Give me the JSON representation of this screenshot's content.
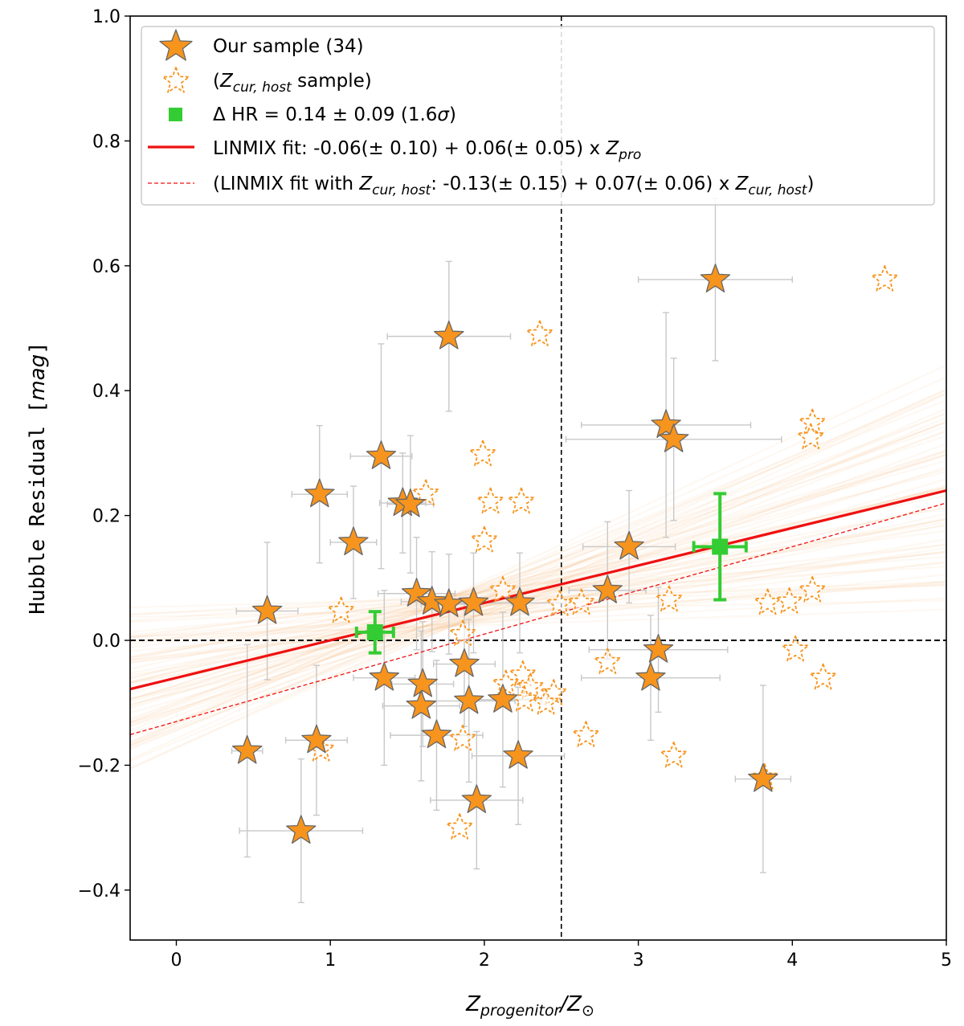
{
  "colors": {
    "star_fill": "#F7941D",
    "star_edge": "#666666",
    "hollow_star": "#F7941D",
    "green": "#33CC33",
    "fit": "#EE1111",
    "band": "#F7B06A",
    "error_bar": "#C8C8C8",
    "ref_line": "#000000"
  },
  "chart_data": {
    "type": "scatter",
    "xlabel": "Zprogenitor/Z⊙",
    "xlabel_parts": {
      "z": "Z",
      "sub": "progenitor",
      "slash": "/Z",
      "odot": "⊙"
    },
    "ylabel": "Hubble Residual [mag]",
    "ylabel_parts": {
      "main": "Hubble Residual ",
      "lb": "[",
      "unit": "mag",
      "rb": "]"
    },
    "xlim": [
      -0.3,
      5.0
    ],
    "ylim": [
      -0.48,
      1.0
    ],
    "x_ticks": [
      0,
      1,
      2,
      3,
      4,
      5
    ],
    "x_tick_labels": [
      "0",
      "1",
      "2",
      "3",
      "4",
      "5"
    ],
    "y_ticks": [
      -0.4,
      -0.2,
      0.0,
      0.2,
      0.4,
      0.6,
      0.8,
      1.0
    ],
    "y_tick_labels": [
      "−0.4",
      "−0.2",
      "0.0",
      "0.2",
      "0.4",
      "0.6",
      "0.8",
      "1.0"
    ],
    "vline_x": 2.5,
    "hline_y": 0.0,
    "legend": {
      "position": "top-left",
      "items": [
        {
          "key": "our_sample",
          "text": "Our sample (34)"
        },
        {
          "key": "zcur_sample",
          "text_open": "(",
          "z": "Z",
          "sub": "cur, host",
          "text_close": " sample)"
        },
        {
          "key": "delta_hr",
          "text": "Δ HR = 0.14 ± 0.09 (1.6",
          "sigma": "σ",
          "text_close": ")"
        },
        {
          "key": "linmix_fit",
          "text": "LINMIX fit: -0.06(± 0.10) + 0.06(± 0.05) x ",
          "z": "Z",
          "sub": "pro"
        },
        {
          "key": "linmix_zcur",
          "text": "(LINMIX fit with ",
          "z": "Z",
          "sub": "cur, host",
          "text_mid": ": -0.13(± 0.15) + 0.07(± 0.06) x ",
          "z2": "Z",
          "sub2": "cur, host",
          "text_close": ")"
        }
      ]
    },
    "fit": {
      "intercept": -0.06,
      "slope": 0.06,
      "x_range": [
        -0.3,
        5.0
      ]
    },
    "fit_zcur": {
      "intercept": -0.13,
      "slope": 0.07,
      "x_range": [
        -0.3,
        5.0
      ]
    },
    "green_points": [
      {
        "x": 1.29,
        "y": 0.013,
        "xerr": 0.12,
        "yerr": 0.033
      },
      {
        "x": 3.53,
        "y": 0.15,
        "xerr": 0.17,
        "yerr": 0.085
      }
    ],
    "our_sample": [
      {
        "x": 1.77,
        "y": 0.487,
        "xerr": 0.4,
        "yerr": 0.12
      },
      {
        "x": 3.5,
        "y": 0.578,
        "xerr": 0.5,
        "yerr": 0.13
      },
      {
        "x": 3.18,
        "y": 0.345,
        "xerr": 0.55,
        "yerr": 0.18
      },
      {
        "x": 3.23,
        "y": 0.322,
        "xerr": 0.7,
        "yerr": 0.13
      },
      {
        "x": 1.33,
        "y": 0.295,
        "xerr": 0.2,
        "yerr": 0.18
      },
      {
        "x": 0.93,
        "y": 0.234,
        "xerr": 0.18,
        "yerr": 0.11
      },
      {
        "x": 1.47,
        "y": 0.22,
        "xerr": 0.15,
        "yerr": 0.08
      },
      {
        "x": 1.52,
        "y": 0.218,
        "xerr": 0.15,
        "yerr": 0.11
      },
      {
        "x": 1.15,
        "y": 0.157,
        "xerr": 0.15,
        "yerr": 0.09
      },
      {
        "x": 2.94,
        "y": 0.15,
        "xerr": 0.3,
        "yerr": 0.09
      },
      {
        "x": 2.8,
        "y": 0.08,
        "xerr": 0.25,
        "yerr": 0.11
      },
      {
        "x": 1.56,
        "y": 0.075,
        "xerr": 0.25,
        "yerr": 0.09
      },
      {
        "x": 1.66,
        "y": 0.062,
        "xerr": 0.2,
        "yerr": 0.08
      },
      {
        "x": 1.77,
        "y": 0.058,
        "xerr": 0.18,
        "yerr": 0.08
      },
      {
        "x": 1.93,
        "y": 0.06,
        "xerr": 0.25,
        "yerr": 0.08
      },
      {
        "x": 2.23,
        "y": 0.06,
        "xerr": 0.3,
        "yerr": 0.08
      },
      {
        "x": 0.59,
        "y": 0.047,
        "xerr": 0.2,
        "yerr": 0.11
      },
      {
        "x": 3.13,
        "y": -0.015,
        "xerr": 0.45,
        "yerr": 0.1
      },
      {
        "x": 1.87,
        "y": -0.038,
        "xerr": 0.2,
        "yerr": 0.1
      },
      {
        "x": 1.35,
        "y": -0.06,
        "xerr": 0.2,
        "yerr": 0.14
      },
      {
        "x": 3.08,
        "y": -0.06,
        "xerr": 0.45,
        "yerr": 0.1
      },
      {
        "x": 1.6,
        "y": -0.07,
        "xerr": 0.2,
        "yerr": 0.1
      },
      {
        "x": 1.9,
        "y": -0.097,
        "xerr": 0.3,
        "yerr": 0.13
      },
      {
        "x": 2.12,
        "y": -0.095,
        "xerr": 0.25,
        "yerr": 0.14
      },
      {
        "x": 1.59,
        "y": -0.105,
        "xerr": 0.25,
        "yerr": 0.12
      },
      {
        "x": 1.69,
        "y": -0.152,
        "xerr": 0.3,
        "yerr": 0.12
      },
      {
        "x": 0.91,
        "y": -0.16,
        "xerr": 0.2,
        "yerr": 0.12
      },
      {
        "x": 0.46,
        "y": -0.177,
        "xerr": 0.1,
        "yerr": 0.17
      },
      {
        "x": 2.22,
        "y": -0.185,
        "xerr": 0.3,
        "yerr": 0.11
      },
      {
        "x": 3.81,
        "y": -0.222,
        "xerr": 0.18,
        "yerr": 0.15
      },
      {
        "x": 1.95,
        "y": -0.256,
        "xerr": 0.3,
        "yerr": 0.11
      },
      {
        "x": 0.81,
        "y": -0.305,
        "xerr": 0.4,
        "yerr": 0.115
      }
    ],
    "zcur_sample": [
      {
        "x": 4.6,
        "y": 0.578
      },
      {
        "x": 2.36,
        "y": 0.49
      },
      {
        "x": 4.13,
        "y": 0.348
      },
      {
        "x": 4.12,
        "y": 0.325
      },
      {
        "x": 1.99,
        "y": 0.298
      },
      {
        "x": 1.62,
        "y": 0.235
      },
      {
        "x": 2.04,
        "y": 0.222
      },
      {
        "x": 2.24,
        "y": 0.222
      },
      {
        "x": 2.0,
        "y": 0.16
      },
      {
        "x": 2.12,
        "y": 0.08
      },
      {
        "x": 4.13,
        "y": 0.08
      },
      {
        "x": 3.2,
        "y": 0.065
      },
      {
        "x": 2.49,
        "y": 0.058
      },
      {
        "x": 2.63,
        "y": 0.06
      },
      {
        "x": 3.84,
        "y": 0.06
      },
      {
        "x": 3.98,
        "y": 0.062
      },
      {
        "x": 1.07,
        "y": 0.047
      },
      {
        "x": 1.86,
        "y": 0.01
      },
      {
        "x": 4.02,
        "y": -0.015
      },
      {
        "x": 2.8,
        "y": -0.035
      },
      {
        "x": 2.25,
        "y": -0.055
      },
      {
        "x": 2.14,
        "y": -0.07
      },
      {
        "x": 2.3,
        "y": -0.075
      },
      {
        "x": 2.45,
        "y": -0.085
      },
      {
        "x": 2.26,
        "y": -0.095
      },
      {
        "x": 2.4,
        "y": -0.1
      },
      {
        "x": 4.2,
        "y": -0.06
      },
      {
        "x": 2.66,
        "y": -0.152
      },
      {
        "x": 1.86,
        "y": -0.158
      },
      {
        "x": 0.94,
        "y": -0.175
      },
      {
        "x": 3.23,
        "y": -0.185
      },
      {
        "x": 3.82,
        "y": -0.22
      },
      {
        "x": 1.84,
        "y": -0.3
      }
    ]
  }
}
